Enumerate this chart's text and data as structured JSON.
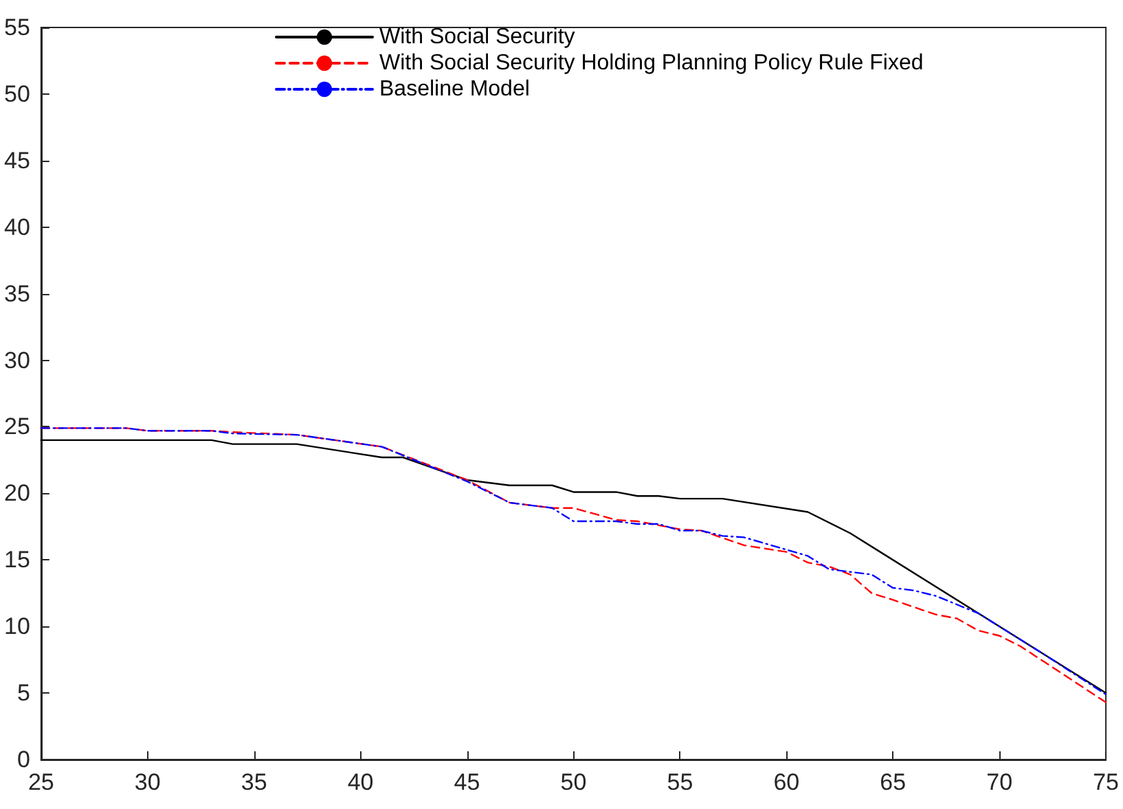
{
  "chart_data": {
    "type": "line",
    "xlim": [
      25,
      75
    ],
    "xticks": [
      25,
      30,
      35,
      40,
      45,
      50,
      55,
      60,
      65,
      70,
      75
    ],
    "ylim": [
      0,
      55
    ],
    "yticks": [
      0,
      5,
      10,
      15,
      20,
      25,
      30,
      35,
      40,
      45,
      50,
      55
    ],
    "grid": false,
    "legend": "top",
    "marker": "none",
    "series": [
      {
        "name": "With Social Security",
        "color": "#000000",
        "line_style": "solid",
        "x": [
          25,
          33,
          34,
          37,
          41,
          42,
          45,
          47,
          49,
          50,
          52,
          53,
          54,
          55,
          57,
          61,
          63,
          75
        ],
        "values": [
          24.0,
          24.0,
          23.7,
          23.7,
          22.7,
          22.7,
          21.0,
          20.6,
          20.6,
          20.1,
          20.1,
          19.8,
          19.8,
          19.6,
          19.6,
          18.6,
          17.0,
          5.0
        ]
      },
      {
        "name": "With Social Security Holding Planning Policy Rule Fixed",
        "color": "#ff0000",
        "line_style": "dashed",
        "x": [
          25,
          29,
          30,
          33,
          34,
          37,
          41,
          45,
          47,
          49,
          50,
          52,
          53,
          55,
          56,
          58,
          60,
          61,
          62,
          63,
          64,
          65,
          67,
          68,
          69,
          70,
          71,
          75
        ],
        "values": [
          24.9,
          24.9,
          24.7,
          24.7,
          24.6,
          24.4,
          23.5,
          21.0,
          19.3,
          18.9,
          18.9,
          18.0,
          17.9,
          17.3,
          17.2,
          16.1,
          15.6,
          14.8,
          14.5,
          13.9,
          12.5,
          12.0,
          10.9,
          10.6,
          9.7,
          9.3,
          8.5,
          4.3
        ]
      },
      {
        "name": "Baseline Model",
        "color": "#0000ff",
        "line_style": "dashdot",
        "x": [
          25,
          29,
          30,
          33,
          34,
          37,
          41,
          45,
          47,
          49,
          50,
          52,
          53,
          54,
          55,
          56,
          57,
          58,
          61,
          62,
          64,
          65,
          66,
          67,
          69,
          72,
          75
        ],
        "values": [
          24.9,
          24.9,
          24.7,
          24.7,
          24.5,
          24.4,
          23.5,
          20.9,
          19.3,
          18.9,
          17.9,
          17.9,
          17.7,
          17.7,
          17.2,
          17.2,
          16.8,
          16.7,
          15.3,
          14.3,
          13.9,
          12.9,
          12.7,
          12.3,
          11.0,
          8.0,
          4.9
        ]
      }
    ]
  }
}
